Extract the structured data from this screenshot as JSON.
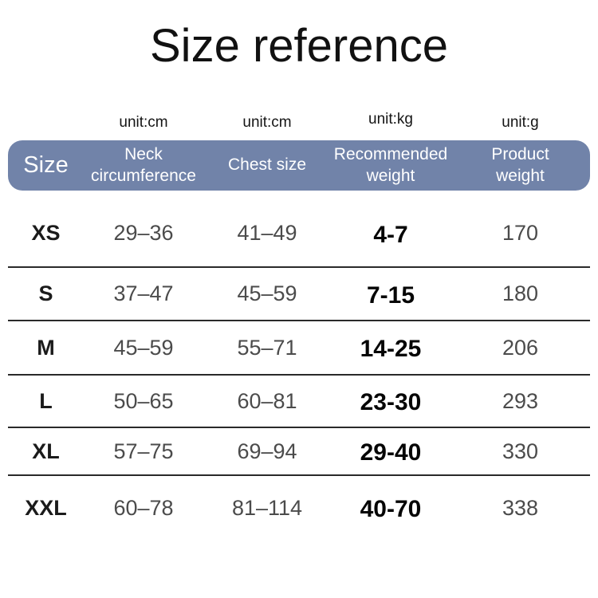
{
  "page": {
    "title": "Size reference"
  },
  "units": {
    "neck": "unit:cm",
    "chest": "unit:cm",
    "weight": "unit:kg",
    "product": "unit:g"
  },
  "table": {
    "headers": {
      "size": "Size",
      "neck": "Neck circumference",
      "chest": "Chest size",
      "weight": "Recommended weight",
      "product": "Product weight"
    },
    "rows": [
      {
        "size": "XS",
        "neck": "29–36",
        "chest": "41–49",
        "weight": "4-7",
        "product": "170"
      },
      {
        "size": "S",
        "neck": "37–47",
        "chest": "45–59",
        "weight": "7-15",
        "product": "180"
      },
      {
        "size": "M",
        "neck": "45–59",
        "chest": "55–71",
        "weight": "14-25",
        "product": "206"
      },
      {
        "size": "L",
        "neck": "50–65",
        "chest": "60–81",
        "weight": "23-30",
        "product": "293"
      },
      {
        "size": "XL",
        "neck": "57–75",
        "chest": "69–94",
        "weight": "29-40",
        "product": "330"
      },
      {
        "size": "XXL",
        "neck": "60–78",
        "chest": "81–114",
        "weight": "40-70",
        "product": "338"
      }
    ]
  },
  "colors": {
    "header_bg": "#7183a9",
    "header_text": "#ffffff",
    "value_gray": "#4b4b4b",
    "divider": "#2a2a2a"
  }
}
